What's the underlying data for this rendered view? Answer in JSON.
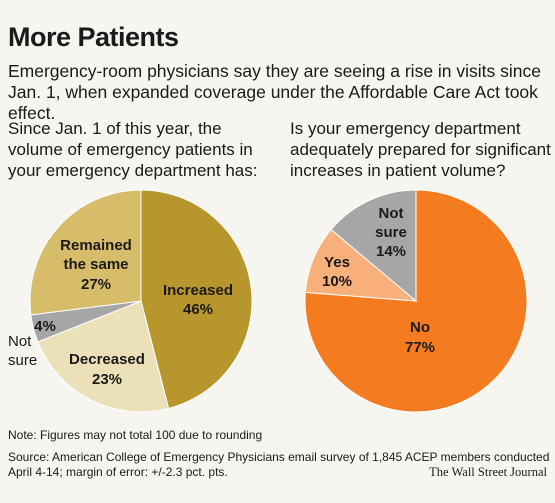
{
  "title": "More Patients",
  "subtitle": "Emergency-room physicians say they are seeing a rise in visits since Jan. 1, when expanded coverage under the Affordable Care Act took effect.",
  "chart_data": [
    {
      "type": "pie",
      "title": "Since Jan. 1 of this year, the volume of emergency patients in your emergency department has:",
      "slices": [
        {
          "label": "Increased",
          "value": 46,
          "display": "46%",
          "color": "#b8962e"
        },
        {
          "label": "Decreased",
          "value": 23,
          "display": "23%",
          "color": "#ece0b8"
        },
        {
          "label": "Not sure",
          "value": 4,
          "display": "4%",
          "color": "#a6a6a6"
        },
        {
          "label": "Remained the same",
          "value": 27,
          "display": "27%",
          "color": "#d7bc69"
        }
      ]
    },
    {
      "type": "pie",
      "title": "Is your emergency department adequately prepared for significant increases in patient volume?",
      "slices": [
        {
          "label": "No",
          "value": 77,
          "display": "77%",
          "color": "#f47b20"
        },
        {
          "label": "Yes",
          "value": 10,
          "display": "10%",
          "color": "#f8b07a"
        },
        {
          "label": "Not sure",
          "value": 14,
          "display": "14%",
          "color": "#a6a6a6"
        }
      ]
    }
  ],
  "note": "Note: Figures may not total 100 due to rounding",
  "source": "Source: American College of Emergency Physicians email survey of 1,845 ACEP members conducted April 4-14; margin of error: +/-2.3 pct. pts.",
  "credit": "The Wall Street Journal"
}
